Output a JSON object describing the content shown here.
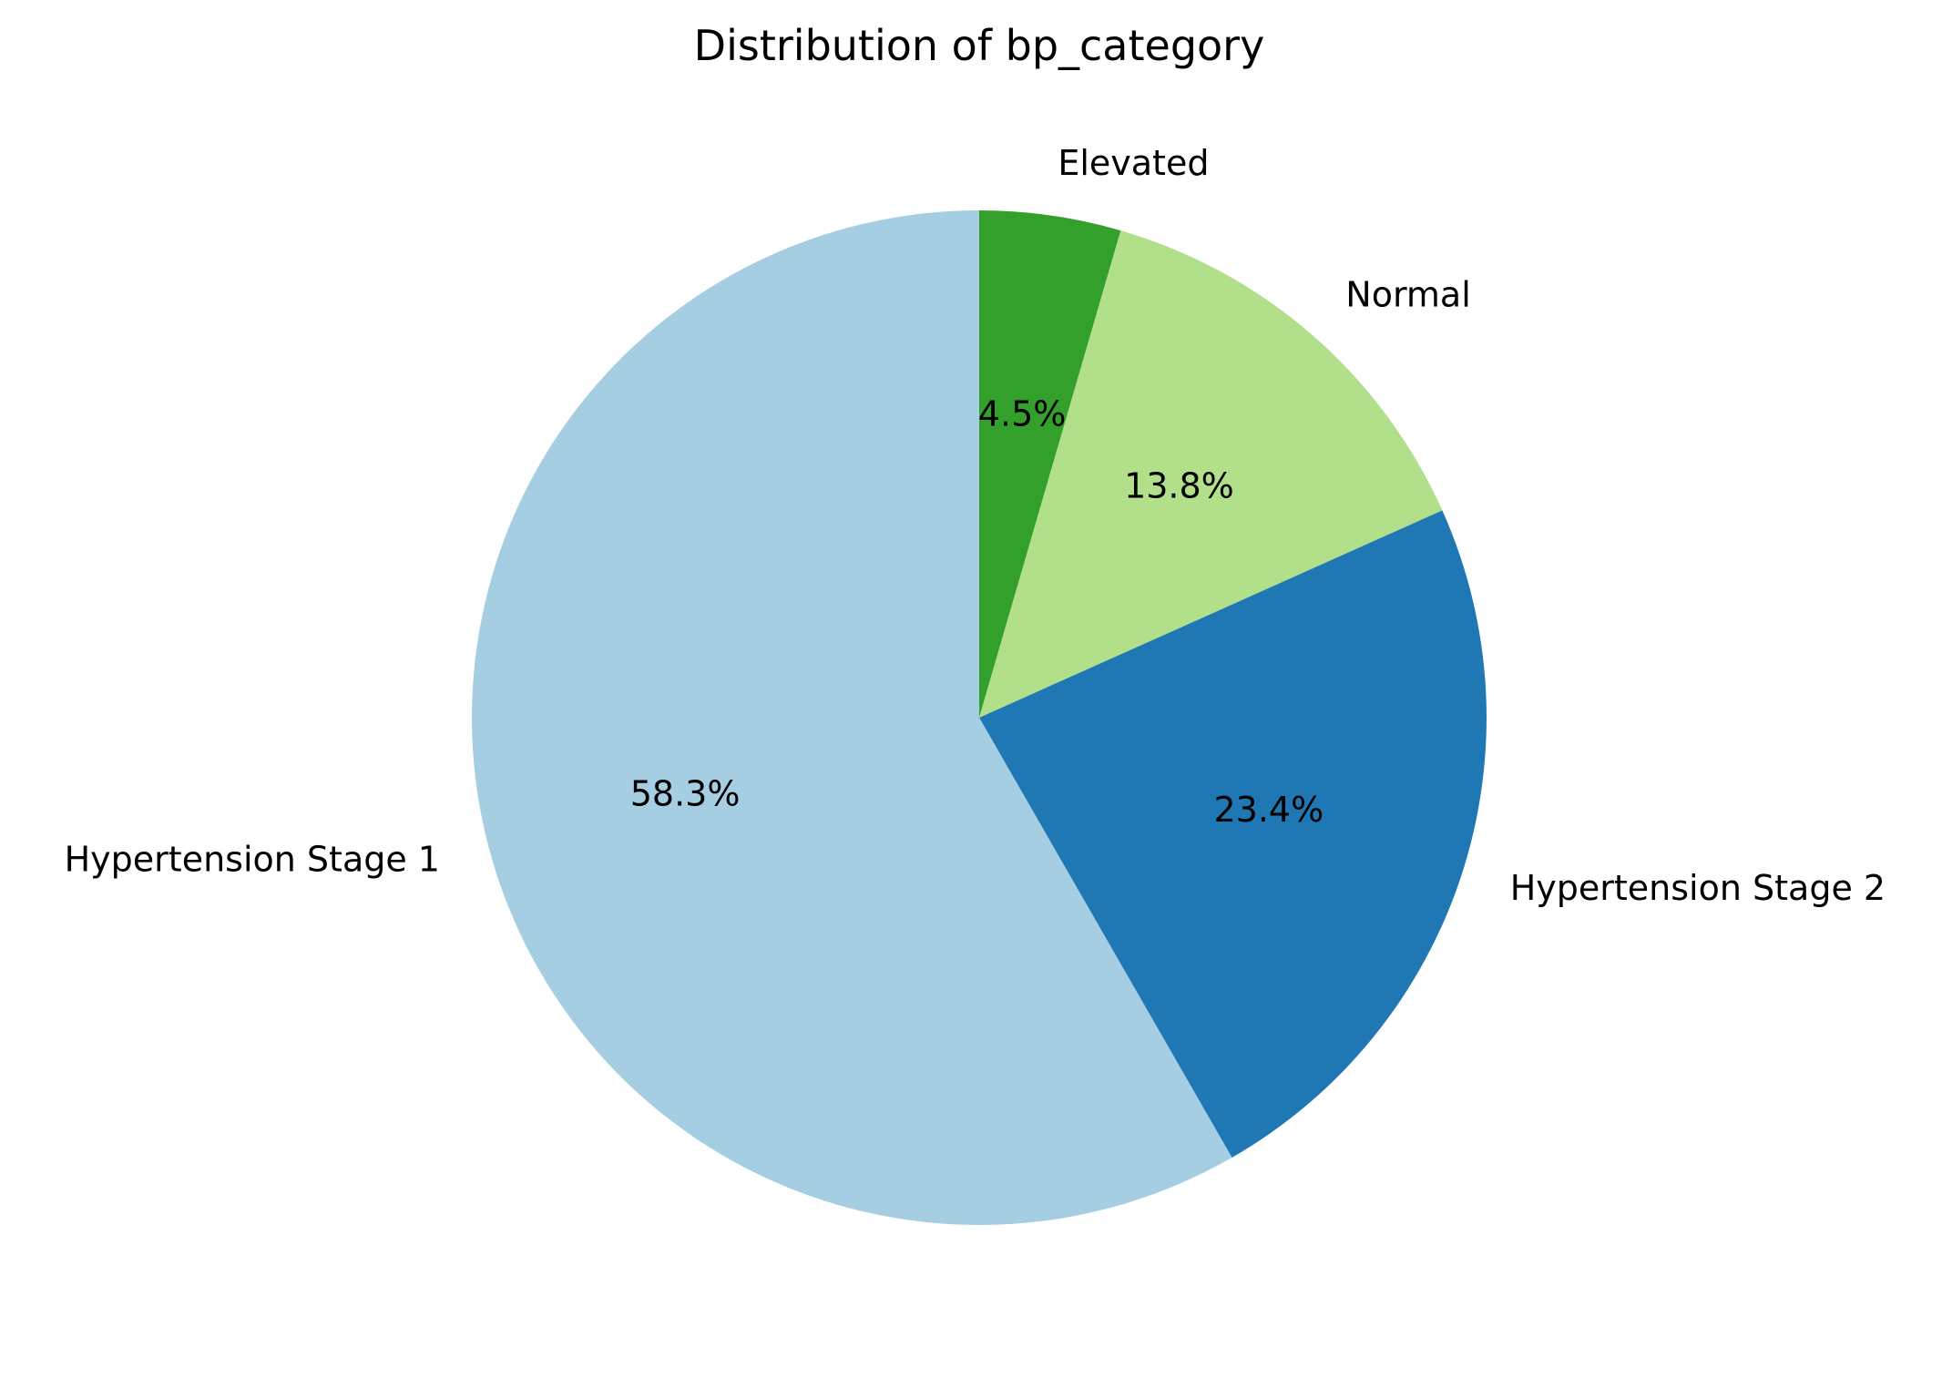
{
  "chart_data": {
    "type": "pie",
    "title": "Distribution of bp_category",
    "slices": [
      {
        "label": "Elevated",
        "value": 4.5,
        "pct_label": "4.5%",
        "color": "#33a02c"
      },
      {
        "label": "Normal",
        "value": 13.8,
        "pct_label": "13.8%",
        "color": "#b2df8a"
      },
      {
        "label": "Hypertension Stage 2",
        "value": 23.4,
        "pct_label": "23.4%",
        "color": "#1f78b4"
      },
      {
        "label": "Hypertension Stage 1",
        "value": 58.3,
        "pct_label": "58.3%",
        "color": "#a6cee3"
      }
    ],
    "start_angle": "90 degrees (top)",
    "direction": "clockwise",
    "legend": "none",
    "grid": false
  }
}
